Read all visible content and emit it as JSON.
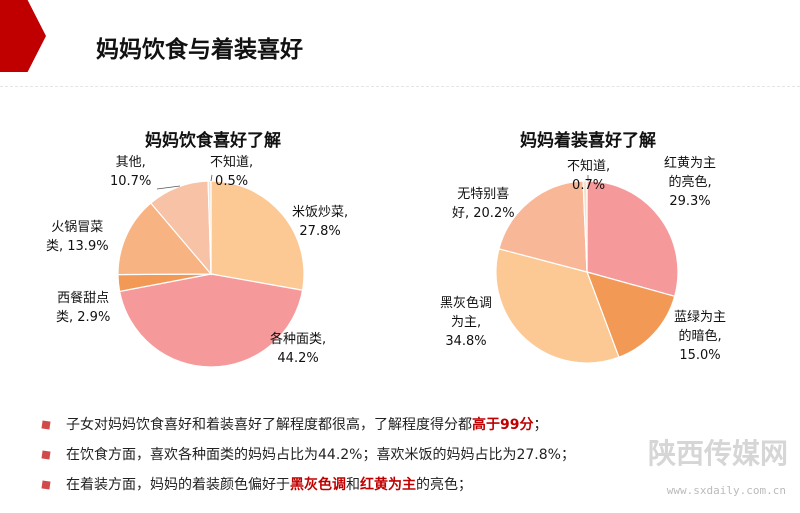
{
  "page": {
    "title": "妈妈饮食与着装喜好"
  },
  "charts": {
    "food": {
      "title": "妈妈饮食喜好了解",
      "labels": {
        "rice": {
          "line1": "米饭炒菜,",
          "line2": "27.8%"
        },
        "noodles": {
          "line1": "各种面类,",
          "line2": "44.2%"
        },
        "western": {
          "line1": "西餐甜点",
          "line2": "类, 2.9%"
        },
        "hotpot": {
          "line1": "火锅冒菜",
          "line2": "类, 13.9%"
        },
        "other": {
          "line1": "其他,",
          "line2": "10.7%"
        },
        "unknown": {
          "line1": "不知道,",
          "line2": "0.5%"
        }
      }
    },
    "clothing": {
      "title": "妈妈着装喜好了解",
      "labels": {
        "bright": {
          "line1": "红黄为主",
          "line2": "的亮色,",
          "line3": "29.3%"
        },
        "dark": {
          "line1": "蓝绿为主",
          "line2": "的暗色,",
          "line3": "15.0%"
        },
        "black": {
          "line1": "黑灰色调",
          "line2": "为主,",
          "line3": "34.8%"
        },
        "none": {
          "line1": "无特别喜",
          "line2": "好, 20.2%"
        },
        "unknown": {
          "line1": "不知道,",
          "line2": "0.7%"
        }
      }
    }
  },
  "chart_data": [
    {
      "type": "pie",
      "title": "妈妈饮食喜好了解",
      "categories": [
        "米饭炒菜",
        "各种面类",
        "西餐甜点类",
        "火锅冒菜类",
        "其他",
        "不知道"
      ],
      "values": [
        27.8,
        44.2,
        2.9,
        13.9,
        10.7,
        0.5
      ],
      "colors": [
        "#fcc893",
        "#f6999b",
        "#f29a55",
        "#f7b381",
        "#f8c2a6",
        "#f2e2cf"
      ]
    },
    {
      "type": "pie",
      "title": "妈妈着装喜好了解",
      "categories": [
        "红黄为主的亮色",
        "蓝绿为主的暗色",
        "黑灰色调为主",
        "无特别喜好",
        "不知道"
      ],
      "values": [
        29.3,
        15.0,
        34.8,
        20.2,
        0.7
      ],
      "colors": [
        "#f6999b",
        "#f29a55",
        "#fcc893",
        "#f8b897",
        "#f2e2cf"
      ]
    }
  ],
  "bullets": {
    "b1": {
      "a": "子女对妈妈饮食喜好和着装喜好了解程度都很高，了解程度得分都",
      "hl": "高于99分",
      "b": "；"
    },
    "b2": {
      "a": "在饮食方面，喜欢各种面类的妈妈占比为44.2%；喜欢米饭的妈妈占比为27.8%；"
    },
    "b3": {
      "a": "在着装方面，妈妈的着装颜色偏好于",
      "hl1": "黑灰色调",
      "mid": "和",
      "hl2": "红黄为主",
      "b": "的亮色；"
    }
  },
  "watermark": {
    "name": "陕西传媒网",
    "url": "www.sxdaily.com.cn"
  }
}
